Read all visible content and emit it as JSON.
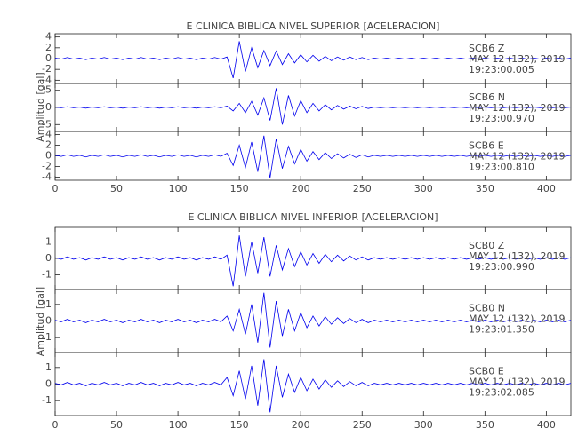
{
  "chart_data": [
    {
      "type": "line",
      "title": "E CLINICA BIBLICA NIVEL SUPERIOR [ACELERACION]",
      "y_label": "Amplitud [gal]",
      "xlim": [
        0,
        420
      ],
      "xticks": [
        0,
        50,
        100,
        150,
        200,
        250,
        300,
        350,
        400
      ],
      "x": [
        0,
        5,
        10,
        15,
        20,
        25,
        30,
        35,
        40,
        45,
        50,
        55,
        60,
        65,
        70,
        75,
        80,
        85,
        90,
        95,
        100,
        105,
        110,
        115,
        120,
        125,
        130,
        135,
        140,
        145,
        150,
        155,
        160,
        165,
        170,
        175,
        180,
        185,
        190,
        195,
        200,
        205,
        210,
        215,
        220,
        225,
        230,
        235,
        240,
        245,
        250,
        255,
        260,
        265,
        270,
        275,
        280,
        285,
        290,
        295,
        300,
        305,
        310,
        315,
        320,
        325,
        330,
        335,
        340,
        345,
        350,
        355,
        360,
        365,
        370,
        375,
        380,
        385,
        390,
        395,
        400,
        405,
        410,
        415,
        420
      ],
      "series": [
        {
          "name": "SCB6   Z",
          "date": "MAY 12 (132), 2019",
          "time": "19:23:00.005",
          "color": "#0000ee",
          "ylim": [
            -4.6,
            4.6
          ],
          "yticks": [
            -4,
            -2,
            0,
            2,
            4
          ],
          "values": [
            0.1,
            -0.1,
            0.2,
            -0.1,
            0.1,
            -0.2,
            0.1,
            -0.1,
            0.2,
            -0.1,
            0.1,
            -0.2,
            0.1,
            -0.1,
            0.2,
            -0.1,
            0.1,
            -0.2,
            0.1,
            -0.1,
            0.2,
            -0.1,
            0.1,
            -0.2,
            0.1,
            -0.1,
            0.2,
            -0.1,
            0.3,
            -3.6,
            3.2,
            -2.4,
            2,
            -1.7,
            1.5,
            -1.3,
            1.4,
            -1.1,
            0.9,
            -0.8,
            0.7,
            -0.6,
            0.6,
            -0.5,
            0.4,
            -0.4,
            0.3,
            -0.3,
            0.3,
            -0.2,
            0.2,
            -0.2,
            0.1,
            -0.1,
            0.1,
            -0.1,
            0.1,
            -0.1,
            0.1,
            -0.1,
            0.1,
            -0.1,
            0.1,
            -0.1,
            0.1,
            -0.1,
            0.1,
            -0.1,
            0.1,
            -0.1,
            0.1,
            -0.1,
            0.1,
            -0.1,
            0.1,
            -0.1,
            0.1,
            -0.1,
            0.1,
            -0.1,
            0.1,
            -0.1,
            0.1,
            -0.1,
            0.1
          ]
        },
        {
          "name": "SCB6   N",
          "date": "MAY 12 (132), 2019",
          "time": "19:23:00.970",
          "color": "#0000ee",
          "ylim": [
            -7,
            7
          ],
          "yticks": [
            -5,
            0,
            5
          ],
          "values": [
            0.1,
            -0.1,
            0.2,
            -0.1,
            0.1,
            -0.2,
            0.1,
            -0.1,
            0.2,
            -0.1,
            0.1,
            -0.2,
            0.1,
            -0.1,
            0.2,
            -0.1,
            0.1,
            -0.2,
            0.1,
            -0.1,
            0.2,
            -0.1,
            0.1,
            -0.2,
            0.1,
            -0.1,
            0.2,
            -0.1,
            0.4,
            -1,
            1.2,
            -1.5,
            1.8,
            -2.2,
            2.8,
            -3.8,
            5.6,
            -5,
            3.5,
            -2.5,
            2,
            -1.5,
            1.2,
            -1,
            0.8,
            -0.7,
            0.6,
            -0.5,
            0.4,
            -0.4,
            0.3,
            -0.3,
            0.1,
            -0.1,
            0.1,
            -0.1,
            0.1,
            -0.1,
            0.1,
            -0.1,
            0.1,
            -0.1,
            0.1,
            -0.1,
            0.1,
            -0.1,
            0.1,
            -0.1,
            0.1,
            -0.1,
            0.1,
            -0.1,
            0.1,
            -0.1,
            0.1,
            -0.1,
            0.1,
            -0.1,
            0.1,
            -0.1,
            0.1,
            -0.1,
            0.1,
            -0.1,
            0.1
          ]
        },
        {
          "name": "SCB6   E",
          "date": "MAY 12 (132), 2019",
          "time": "19:23:00.810",
          "color": "#0000ee",
          "ylim": [
            -4.6,
            4.6
          ],
          "yticks": [
            -4,
            -2,
            0,
            2,
            4
          ],
          "values": [
            0.1,
            -0.1,
            0.2,
            -0.1,
            0.1,
            -0.2,
            0.1,
            -0.1,
            0.2,
            -0.1,
            0.1,
            -0.2,
            0.1,
            -0.1,
            0.2,
            -0.1,
            0.1,
            -0.2,
            0.1,
            -0.1,
            0.2,
            -0.1,
            0.1,
            -0.2,
            0.1,
            -0.1,
            0.2,
            -0.1,
            0.5,
            -1.8,
            2,
            -2.2,
            2.6,
            -3,
            3.8,
            -4.2,
            3.2,
            -2.4,
            1.8,
            -1.5,
            1.2,
            -1,
            0.8,
            -0.7,
            0.6,
            -0.5,
            0.4,
            -0.4,
            0.3,
            -0.3,
            0.2,
            -0.2,
            0.1,
            -0.1,
            0.1,
            -0.1,
            0.1,
            -0.1,
            0.1,
            -0.1,
            0.1,
            -0.1,
            0.1,
            -0.1,
            0.1,
            -0.1,
            0.1,
            -0.1,
            0.1,
            -0.1,
            0.1,
            -0.1,
            0.1,
            -0.1,
            0.1,
            -0.1,
            0.1,
            -0.1,
            0.1,
            -0.1,
            0.1,
            -0.1,
            0.1,
            -0.1,
            0.1
          ]
        }
      ]
    },
    {
      "type": "line",
      "title": "E CLINICA BIBLICA NIVEL INFERIOR [ACELERACION]",
      "y_label": "Amplitud [gal]",
      "xlim": [
        0,
        420
      ],
      "xticks": [
        0,
        50,
        100,
        150,
        200,
        250,
        300,
        350,
        400
      ],
      "x": [
        0,
        5,
        10,
        15,
        20,
        25,
        30,
        35,
        40,
        45,
        50,
        55,
        60,
        65,
        70,
        75,
        80,
        85,
        90,
        95,
        100,
        105,
        110,
        115,
        120,
        125,
        130,
        135,
        140,
        145,
        150,
        155,
        160,
        165,
        170,
        175,
        180,
        185,
        190,
        195,
        200,
        205,
        210,
        215,
        220,
        225,
        230,
        235,
        240,
        245,
        250,
        255,
        260,
        265,
        270,
        275,
        280,
        285,
        290,
        295,
        300,
        305,
        310,
        315,
        320,
        325,
        330,
        335,
        340,
        345,
        350,
        355,
        360,
        365,
        370,
        375,
        380,
        385,
        390,
        395,
        400,
        405,
        410,
        415,
        420
      ],
      "series": [
        {
          "name": "SCB0   Z",
          "date": "MAY 12 (132), 2019",
          "time": "19:23:00.990",
          "color": "#0000ee",
          "ylim": [
            -1.9,
            1.9
          ],
          "yticks": [
            -1,
            0,
            1
          ],
          "values": [
            0.05,
            -0.05,
            0.1,
            -0.05,
            0.05,
            -0.1,
            0.05,
            -0.05,
            0.1,
            -0.05,
            0.05,
            -0.1,
            0.05,
            -0.05,
            0.1,
            -0.05,
            0.05,
            -0.1,
            0.05,
            -0.05,
            0.1,
            -0.05,
            0.05,
            -0.1,
            0.05,
            -0.05,
            0.1,
            -0.05,
            0.2,
            -1.7,
            1.4,
            -1.1,
            1,
            -0.9,
            1.3,
            -1.1,
            0.8,
            -0.7,
            0.6,
            -0.5,
            0.4,
            -0.4,
            0.3,
            -0.3,
            0.25,
            -0.2,
            0.2,
            -0.15,
            0.15,
            -0.1,
            0.1,
            -0.1,
            0.05,
            -0.05,
            0.05,
            -0.05,
            0.05,
            -0.05,
            0.05,
            -0.05,
            0.05,
            -0.05,
            0.05,
            -0.05,
            0.05,
            -0.05,
            0.05,
            -0.05,
            0.05,
            -0.05,
            0.05,
            -0.05,
            0.05,
            -0.05,
            0.05,
            -0.05,
            0.05,
            -0.05,
            0.05,
            -0.05,
            0.05,
            -0.05,
            0.05,
            -0.05,
            0.05
          ]
        },
        {
          "name": "SCB0   N",
          "date": "MAY 12 (132), 2019",
          "time": "19:23:01.350",
          "color": "#0000ee",
          "ylim": [
            -1.9,
            1.9
          ],
          "yticks": [
            -1,
            0,
            1
          ],
          "values": [
            0.05,
            -0.05,
            0.1,
            -0.05,
            0.05,
            -0.1,
            0.05,
            -0.05,
            0.1,
            -0.05,
            0.05,
            -0.1,
            0.05,
            -0.05,
            0.1,
            -0.05,
            0.05,
            -0.1,
            0.05,
            -0.05,
            0.1,
            -0.05,
            0.05,
            -0.1,
            0.05,
            -0.05,
            0.1,
            -0.05,
            0.3,
            -0.6,
            0.7,
            -0.8,
            1,
            -1.3,
            1.7,
            -1.6,
            1.2,
            -0.9,
            0.7,
            -0.6,
            0.5,
            -0.4,
            0.3,
            -0.3,
            0.25,
            -0.2,
            0.2,
            -0.15,
            0.15,
            -0.1,
            0.1,
            -0.1,
            0.05,
            -0.05,
            0.05,
            -0.05,
            0.05,
            -0.05,
            0.05,
            -0.05,
            0.05,
            -0.05,
            0.05,
            -0.05,
            0.05,
            -0.05,
            0.05,
            -0.05,
            0.05,
            -0.05,
            0.05,
            -0.05,
            0.05,
            -0.05,
            0.05,
            -0.05,
            0.05,
            -0.05,
            0.05,
            -0.05,
            0.05,
            -0.05,
            0.05,
            -0.05,
            0.05
          ]
        },
        {
          "name": "SCB0   E",
          "date": "MAY 12 (132), 2019",
          "time": "19:23:02.085",
          "color": "#0000ee",
          "ylim": [
            -1.9,
            1.9
          ],
          "yticks": [
            -1,
            0,
            1
          ],
          "values": [
            0.05,
            -0.05,
            0.1,
            -0.05,
            0.05,
            -0.1,
            0.05,
            -0.05,
            0.1,
            -0.05,
            0.05,
            -0.1,
            0.05,
            -0.05,
            0.1,
            -0.05,
            0.05,
            -0.1,
            0.05,
            -0.05,
            0.1,
            -0.05,
            0.05,
            -0.1,
            0.05,
            -0.05,
            0.1,
            -0.05,
            0.4,
            -0.7,
            0.8,
            -0.9,
            1.1,
            -1.3,
            1.5,
            -1.7,
            1.1,
            -0.8,
            0.6,
            -0.5,
            0.4,
            -0.4,
            0.3,
            -0.3,
            0.25,
            -0.2,
            0.2,
            -0.15,
            0.15,
            -0.1,
            0.1,
            -0.1,
            0.05,
            -0.05,
            0.05,
            -0.05,
            0.05,
            -0.05,
            0.05,
            -0.05,
            0.05,
            -0.05,
            0.05,
            -0.05,
            0.05,
            -0.05,
            0.05,
            -0.05,
            0.05,
            -0.05,
            0.05,
            -0.05,
            0.05,
            -0.05,
            0.05,
            -0.05,
            0.05,
            -0.05,
            0.05,
            -0.05,
            0.05,
            -0.05,
            0.05,
            -0.05,
            0.05
          ]
        }
      ]
    }
  ]
}
